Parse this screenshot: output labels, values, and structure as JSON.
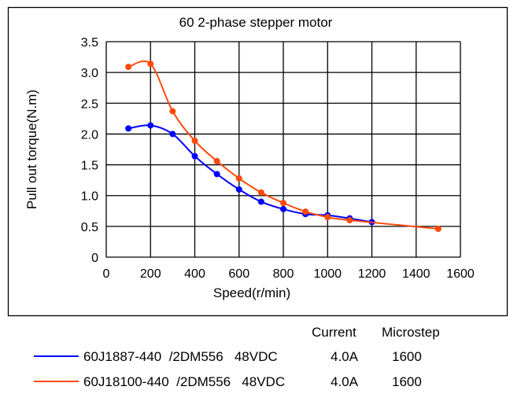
{
  "chart_data": {
    "type": "line",
    "title": "60 2-phase stepper motor",
    "xlabel": "Speed(r/min)",
    "ylabel": "Pull out torque(N.m)",
    "xlim": [
      0,
      1600
    ],
    "ylim": [
      0,
      3.5
    ],
    "xticks": [
      "0",
      "200",
      "400",
      "600",
      "800",
      "1000",
      "1200",
      "1400",
      "1600"
    ],
    "yticks": [
      "0",
      "0.5",
      "1.0",
      "1.5",
      "2.0",
      "2.5",
      "3.0",
      "3.5"
    ],
    "grid": true,
    "legend_position": "bottom",
    "legend_headers": {
      "current": "Current",
      "microstep": "Microstep"
    },
    "series": [
      {
        "name": "60J1887-440  /2DM556   48VDC",
        "current": "4.0A",
        "microstep": "1600",
        "color": "#0000ff",
        "x": [
          100,
          200,
          300,
          400,
          500,
          600,
          700,
          800,
          900,
          1000,
          1100,
          1200
        ],
        "y": [
          2.09,
          2.14,
          2.0,
          1.64,
          1.35,
          1.1,
          0.9,
          0.78,
          0.7,
          0.68,
          0.63,
          0.57
        ]
      },
      {
        "name": "60J18100-440  /2DM556   48VDC",
        "current": "4.0A",
        "microstep": "1600",
        "color": "#ff4a0a",
        "x": [
          100,
          200,
          300,
          400,
          500,
          600,
          700,
          800,
          900,
          1000,
          1100,
          1500
        ],
        "y": [
          3.09,
          3.14,
          2.37,
          1.89,
          1.56,
          1.28,
          1.05,
          0.88,
          0.74,
          0.65,
          0.6,
          0.46
        ]
      }
    ]
  }
}
